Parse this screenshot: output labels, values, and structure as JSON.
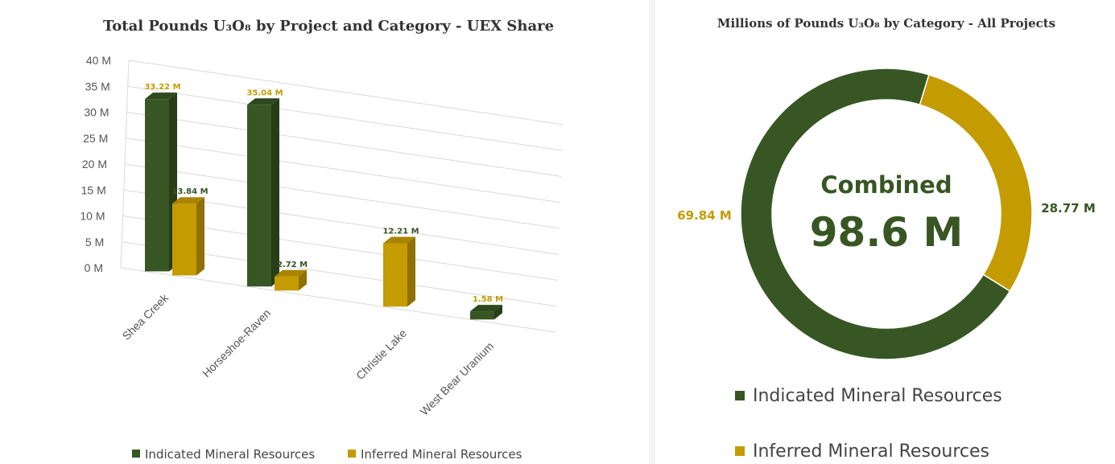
{
  "colors": {
    "indicated": "#375623",
    "indicated_side": "#263d18",
    "indicated_top": "#2c4a1d",
    "inferred": "#c49b00",
    "inferred_side": "#8f7000",
    "inferred_top": "#a88400",
    "indicated_label": "#375623",
    "inferred_label": "#c49b00"
  },
  "chart_data": [
    {
      "type": "bar",
      "title": "Total Pounds U₃O₈ by Project and Category - UEX Share",
      "categories": [
        "Shea Creek",
        "Horseshoe-Raven",
        "Christie Lake",
        "West Bear Uranium"
      ],
      "series": [
        {
          "name": "Indicated Mineral Resources",
          "values": [
            33.22,
            35.04,
            null,
            1.58
          ],
          "labels": [
            "33.22 M",
            "35.04 M",
            "",
            "1.58 M"
          ]
        },
        {
          "name": "Inferred Mineral Resources",
          "values": [
            13.84,
            2.72,
            12.21,
            null
          ],
          "labels": [
            "13.84 M",
            "2.72 M",
            "12.21 M",
            ""
          ]
        }
      ],
      "yticks": [
        "0 M",
        "5 M",
        "10 M",
        "15 M",
        "20 M",
        "25 M",
        "30 M",
        "35 M",
        "40 M"
      ],
      "ylim": [
        0,
        40
      ],
      "grid": true,
      "legend": "bottom"
    },
    {
      "type": "pie",
      "style": "donut",
      "title": "Millions of Pounds U₃O₈ by Category - All Projects",
      "slices": [
        {
          "name": "Indicated Mineral Resources",
          "value": 69.84,
          "label": "69.84 M"
        },
        {
          "name": "Inferred Mineral Resources",
          "value": 28.77,
          "label": "28.77 M"
        }
      ],
      "center_label": "Combined",
      "center_value": "98.6 M",
      "legend": "bottom"
    }
  ]
}
